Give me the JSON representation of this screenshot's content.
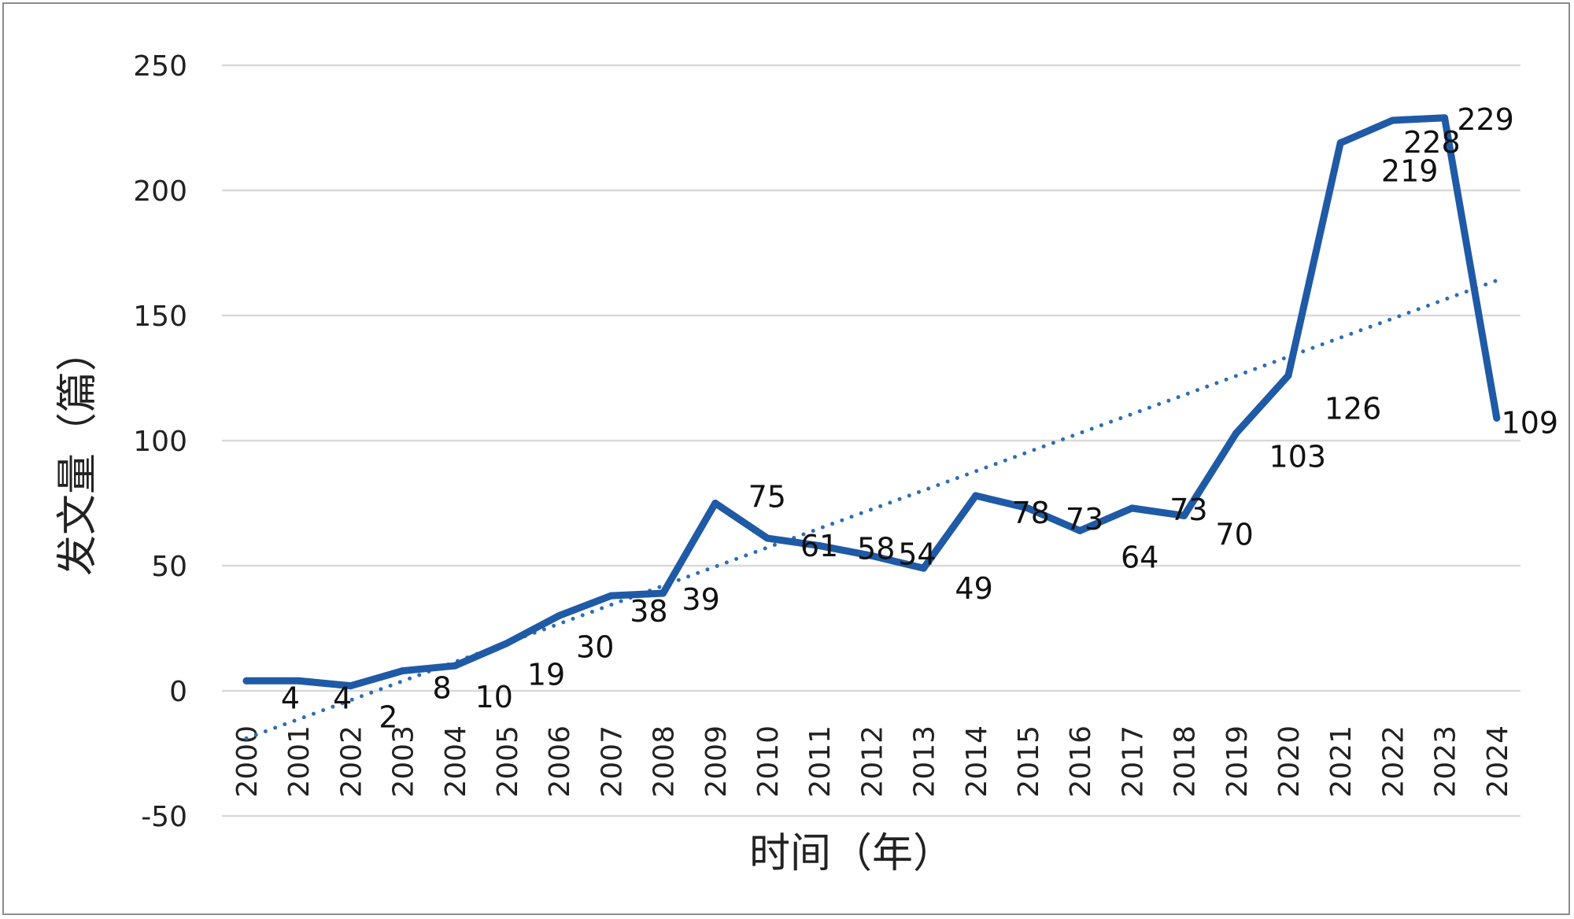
{
  "chart_data": {
    "type": "line",
    "title": "",
    "xlabel": "时间（年）",
    "ylabel": "发文量（篇）",
    "categories": [
      "2000",
      "2001",
      "2002",
      "2003",
      "2004",
      "2005",
      "2006",
      "2007",
      "2008",
      "2009",
      "2010",
      "2011",
      "2012",
      "2013",
      "2014",
      "2015",
      "2016",
      "2017",
      "2018",
      "2019",
      "2020",
      "2021",
      "2022",
      "2023",
      "2024"
    ],
    "series": [
      {
        "name": "发文量",
        "values": [
          4,
          4,
          2,
          8,
          10,
          19,
          30,
          38,
          39,
          75,
          61,
          58,
          54,
          49,
          78,
          73,
          64,
          73,
          70,
          103,
          126,
          219,
          228,
          229,
          109
        ],
        "color": "#1f5aa6"
      }
    ],
    "trendline": {
      "type": "linear",
      "start_value": -19,
      "end_value": 164,
      "color": "#2e6db4"
    },
    "y_ticks": [
      "-50",
      "0",
      "50",
      "100",
      "150",
      "200",
      "250"
    ],
    "y_tick_values": [
      -50,
      0,
      50,
      100,
      150,
      200,
      250
    ],
    "ylim": [
      -50,
      250
    ],
    "grid": true,
    "legend": "none",
    "data_labels": [
      "4",
      "4",
      "2",
      "8",
      "10",
      "19",
      "30",
      "38",
      "39",
      "75",
      "61",
      "58",
      "54",
      "49",
      "78",
      "73",
      "64",
      "73",
      "70",
      "103",
      "126",
      "219",
      "228",
      "229",
      "109"
    ],
    "gridline_color": "#d9d9d9"
  }
}
